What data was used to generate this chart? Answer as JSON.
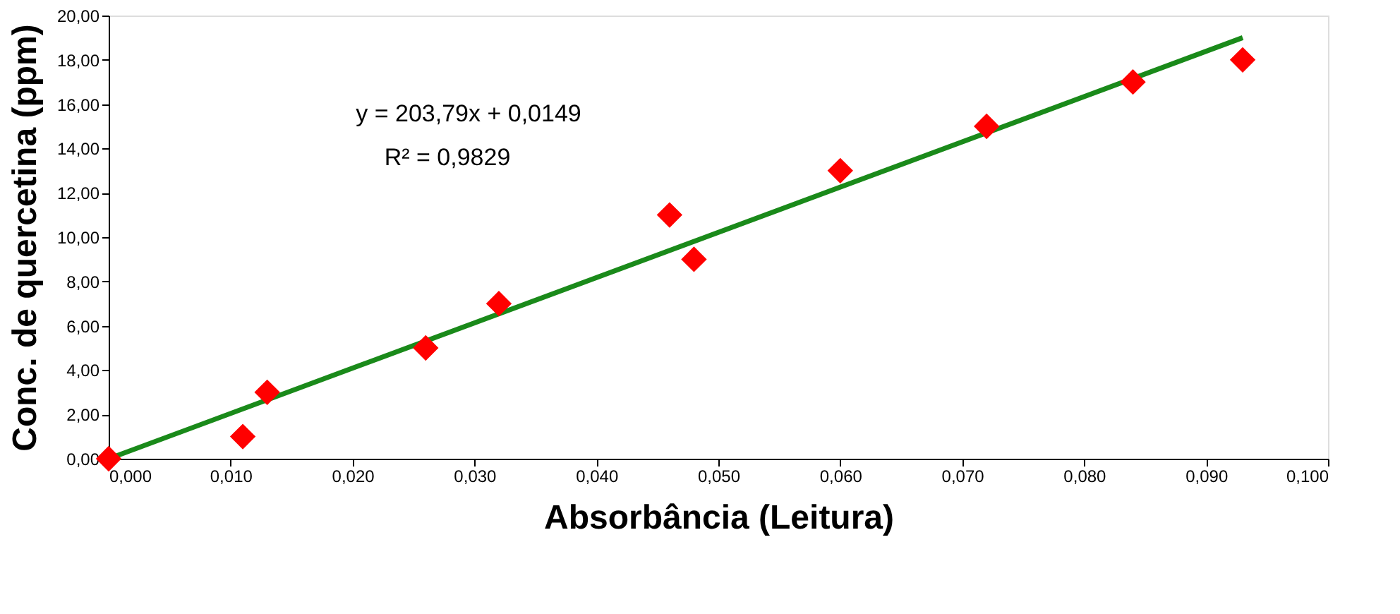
{
  "chart_data": {
    "type": "scatter",
    "xlabel": "Absorbância (Leitura)",
    "ylabel": "Conc. de quercetina (ppm)",
    "xlim": [
      0,
      0.1
    ],
    "ylim": [
      0,
      20
    ],
    "xticks": [
      {
        "value": 0,
        "label": "0,000"
      },
      {
        "value": 0.01,
        "label": "0,010"
      },
      {
        "value": 0.02,
        "label": "0,020"
      },
      {
        "value": 0.03,
        "label": "0,030"
      },
      {
        "value": 0.04,
        "label": "0,040"
      },
      {
        "value": 0.05,
        "label": "0,050"
      },
      {
        "value": 0.06,
        "label": "0,060"
      },
      {
        "value": 0.07,
        "label": "0,070"
      },
      {
        "value": 0.08,
        "label": "0,080"
      },
      {
        "value": 0.09,
        "label": "0,090"
      },
      {
        "value": 0.1,
        "label": "0,100"
      }
    ],
    "yticks": [
      {
        "value": 0,
        "label": "0,00"
      },
      {
        "value": 2,
        "label": "2,00"
      },
      {
        "value": 4,
        "label": "4,00"
      },
      {
        "value": 6,
        "label": "6,00"
      },
      {
        "value": 8,
        "label": "8,00"
      },
      {
        "value": 10,
        "label": "10,00"
      },
      {
        "value": 12,
        "label": "12,00"
      },
      {
        "value": 14,
        "label": "14,00"
      },
      {
        "value": 16,
        "label": "16,00"
      },
      {
        "value": 18,
        "label": "18,00"
      },
      {
        "value": 20,
        "label": "20,00"
      }
    ],
    "grid": false,
    "marker": "diamond",
    "series": [
      {
        "type": "scatter",
        "color": "#ff0000",
        "x": [
          0,
          0.011,
          0.013,
          0.026,
          0.032,
          0.046,
          0.048,
          0.06,
          0.072,
          0.084,
          0.093
        ],
        "values": [
          0,
          1,
          3,
          5,
          7,
          11,
          9,
          13,
          15,
          17,
          18
        ]
      },
      {
        "type": "line",
        "color": "#1a8a1a",
        "line_style": "solid",
        "marker": "none",
        "x": [
          0,
          0.093
        ],
        "values": [
          0,
          19
        ]
      }
    ],
    "annotations": [
      "y = 203,79x + 0,0149",
      "R² = 0,9829"
    ]
  }
}
